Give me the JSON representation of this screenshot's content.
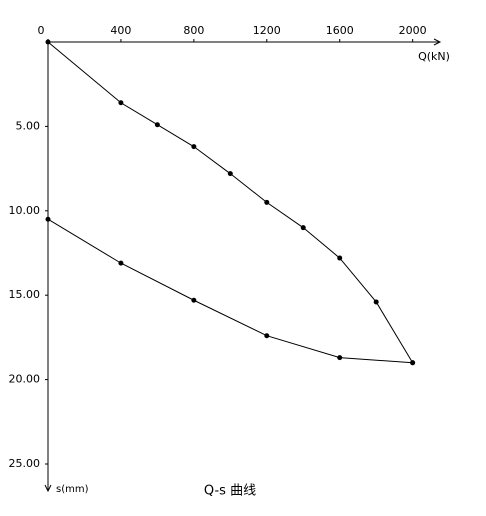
{
  "chart_data": {
    "type": "line",
    "title": "Q-s 曲线",
    "x_label": "Q(kN)",
    "y_label": "s(mm)",
    "xlim": [
      0,
      2150
    ],
    "ylim": [
      0,
      26.6
    ],
    "y_inverted": true,
    "xticks": [
      0,
      400,
      800,
      1200,
      1600,
      2000
    ],
    "yticks": [
      {
        "value": 5,
        "label": "5.00"
      },
      {
        "value": 10,
        "label": "10.00"
      },
      {
        "value": 15,
        "label": "15.00"
      },
      {
        "value": 20,
        "label": "20.00"
      },
      {
        "value": 25,
        "label": "25.00"
      }
    ],
    "series": [
      {
        "color": "#000000",
        "x": [
          0,
          400,
          600,
          800,
          1000,
          1200,
          1400,
          1600,
          1800,
          2000
        ],
        "values": [
          0,
          3.6,
          4.9,
          6.2,
          7.8,
          9.5,
          11.0,
          12.8,
          15.4,
          19.0
        ]
      },
      {
        "color": "#000000",
        "x": [
          2000,
          1600,
          1200,
          800,
          400,
          0
        ],
        "values": [
          19.0,
          18.7,
          17.4,
          15.3,
          13.1,
          10.5
        ]
      }
    ]
  }
}
